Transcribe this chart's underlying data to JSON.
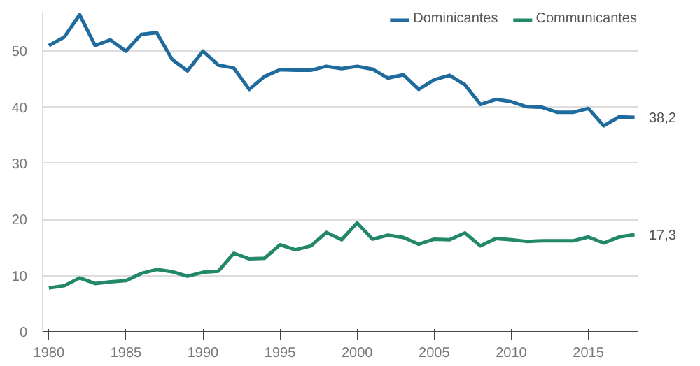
{
  "chart_data": {
    "type": "line",
    "x": [
      1980,
      1981,
      1982,
      1983,
      1984,
      1985,
      1986,
      1987,
      1988,
      1989,
      1990,
      1991,
      1992,
      1993,
      1994,
      1995,
      1996,
      1997,
      1998,
      1999,
      2000,
      2001,
      2002,
      2003,
      2004,
      2005,
      2006,
      2007,
      2008,
      2009,
      2010,
      2011,
      2012,
      2013,
      2014,
      2015,
      2016,
      2017,
      2018
    ],
    "series": [
      {
        "name": "Dominicantes",
        "color": "#1f6b9e",
        "values": [
          51,
          52.5,
          56.5,
          51,
          52,
          50,
          53,
          53.3,
          48.5,
          46.5,
          50,
          47.5,
          47,
          43.2,
          45.5,
          46.7,
          46.6,
          46.6,
          47.3,
          46.9,
          47.3,
          46.8,
          45.2,
          45.8,
          43.2,
          44.9,
          45.7,
          44,
          40.5,
          41.4,
          41,
          40.1,
          40,
          39.1,
          39.1,
          39.8,
          36.7,
          38.3,
          38.2
        ],
        "value_labels": [
          null,
          null,
          null,
          null,
          null,
          null,
          null,
          null,
          null,
          null,
          null,
          null,
          null,
          null,
          null,
          null,
          null,
          null,
          null,
          null,
          null,
          null,
          null,
          null,
          null,
          null,
          null,
          null,
          null,
          null,
          null,
          null,
          null,
          null,
          null,
          null,
          null,
          null,
          "38,2"
        ]
      },
      {
        "name": "Communicantes",
        "color": "#23876a",
        "values": [
          7.8,
          8.2,
          9.6,
          8.6,
          8.9,
          9.1,
          10.4,
          11.1,
          10.7,
          9.9,
          10.6,
          10.8,
          14,
          13,
          13.1,
          15.5,
          14.6,
          15.3,
          17.7,
          16.4,
          19.4,
          16.5,
          17.2,
          16.8,
          15.6,
          16.5,
          16.4,
          17.6,
          15.3,
          16.6,
          16.4,
          16.1,
          16.2,
          16.2,
          16.2,
          16.9,
          15.8,
          16.9,
          17.3
        ],
        "value_labels": [
          null,
          null,
          null,
          null,
          null,
          null,
          null,
          null,
          null,
          null,
          null,
          null,
          null,
          null,
          null,
          null,
          null,
          null,
          null,
          null,
          null,
          null,
          null,
          null,
          null,
          null,
          null,
          null,
          null,
          null,
          null,
          null,
          null,
          null,
          null,
          null,
          null,
          null,
          "17,3"
        ]
      }
    ],
    "xlim": [
      1979.6,
      2018.2
    ],
    "xticks": [
      1980,
      1985,
      1990,
      1995,
      2000,
      2005,
      2010,
      2015
    ],
    "ylim": [
      0,
      57
    ],
    "yticks": [
      0,
      10,
      20,
      30,
      40,
      50
    ],
    "grid": "y",
    "legend": "top right",
    "marker": "none",
    "line_style": "solid"
  }
}
